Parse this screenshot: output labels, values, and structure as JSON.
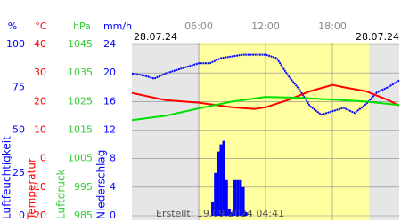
{
  "chart_data": {
    "type": "line",
    "date_left": "28.07.24",
    "date_right": "28.07.24",
    "footer": "Erstellt: 19.09.2024 04:41",
    "xlim": [
      0,
      24
    ],
    "xticks": [
      {
        "value": 6,
        "label": "06:00"
      },
      {
        "value": 12,
        "label": "12:00"
      },
      {
        "value": 18,
        "label": "18:00"
      }
    ],
    "daylight": [
      6.1,
      21.3
    ],
    "y_axes": [
      {
        "unit": "%",
        "title": "Luftfeuchtigkeit",
        "color": "#0000ff",
        "lim": [
          0,
          100
        ],
        "ticks": [
          0,
          25,
          50,
          75,
          100
        ]
      },
      {
        "unit": "°C",
        "title": "Temperatur",
        "color": "#ff0000",
        "lim": [
          -20,
          40
        ],
        "ticks": [
          -20,
          -10,
          0,
          10,
          20,
          30,
          40
        ]
      },
      {
        "unit": "hPa",
        "title": "Luftdruck",
        "color": "#33cc33",
        "lim": [
          985,
          1045
        ],
        "ticks": [
          985,
          995,
          1005,
          1015,
          1025,
          1035,
          1045
        ]
      },
      {
        "unit": "mm/h",
        "title": "Niederschlag",
        "color": "#0000ff",
        "lim": [
          0,
          24
        ],
        "ticks": [
          0,
          4,
          8,
          12,
          16,
          20,
          24
        ]
      }
    ],
    "series": [
      {
        "kind": "line",
        "axis": 0,
        "color": "#0000ff",
        "x": [
          0,
          1,
          2,
          3,
          4,
          5,
          6,
          7,
          8,
          9,
          10,
          11,
          12,
          13,
          14,
          15,
          16,
          17,
          18,
          19,
          20,
          21,
          22,
          23,
          24
        ],
        "values": [
          83,
          82,
          80,
          83,
          85,
          87,
          89,
          89,
          92,
          93,
          94,
          94,
          94,
          92,
          82,
          74,
          64,
          59,
          61,
          63,
          60,
          65,
          72,
          75,
          79
        ]
      },
      {
        "kind": "line",
        "axis": 1,
        "color": "#ff0000",
        "x": [
          0,
          3,
          6,
          9,
          11,
          12,
          14,
          16,
          18,
          19,
          21,
          23,
          24
        ],
        "values": [
          23,
          20.5,
          19.6,
          18,
          17.4,
          18,
          20.5,
          23.6,
          25.8,
          25,
          23.6,
          20.5,
          18.6
        ]
      },
      {
        "kind": "line",
        "axis": 2,
        "color": "#00e000",
        "x": [
          0,
          3,
          6,
          9,
          12,
          15,
          18,
          21,
          24
        ],
        "values": [
          1018.5,
          1020,
          1022.6,
          1025,
          1026.6,
          1026.3,
          1025.7,
          1025,
          1023.8
        ]
      },
      {
        "kind": "bar",
        "axis": 3,
        "color": "#0000ff",
        "x": [
          7.25,
          7.5,
          7.75,
          8,
          8.25,
          8.5,
          8.75,
          9,
          9.25,
          9.5,
          9.75,
          10,
          10.25
        ],
        "values": [
          2,
          6,
          9,
          10,
          10.5,
          5,
          1,
          0.5,
          5,
          5,
          5,
          4,
          0.5
        ]
      }
    ]
  }
}
